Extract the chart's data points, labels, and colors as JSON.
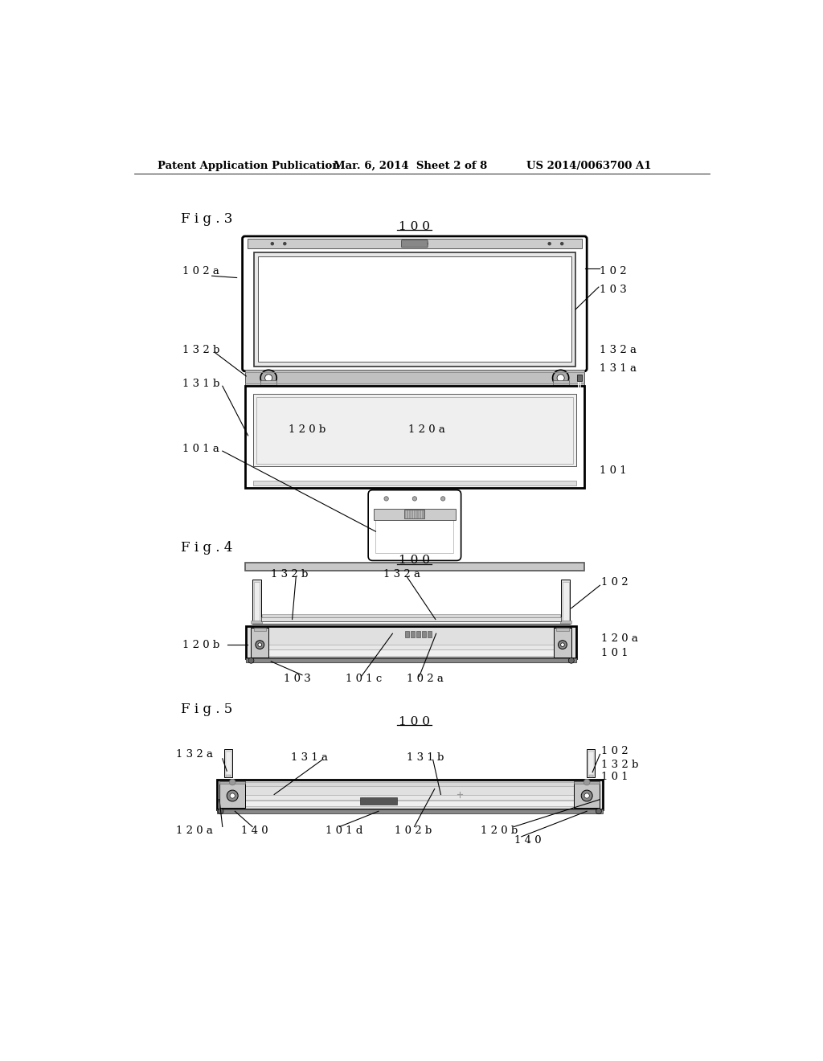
{
  "background_color": "#ffffff",
  "header_left": "Patent Application Publication",
  "header_mid": "Mar. 6, 2014  Sheet 2 of 8",
  "header_right": "US 2014/0063700 A1",
  "fig3_label": "F i g . 3",
  "fig4_label": "F i g . 4",
  "fig5_label": "F i g . 5",
  "ref_100": "1 0 0"
}
